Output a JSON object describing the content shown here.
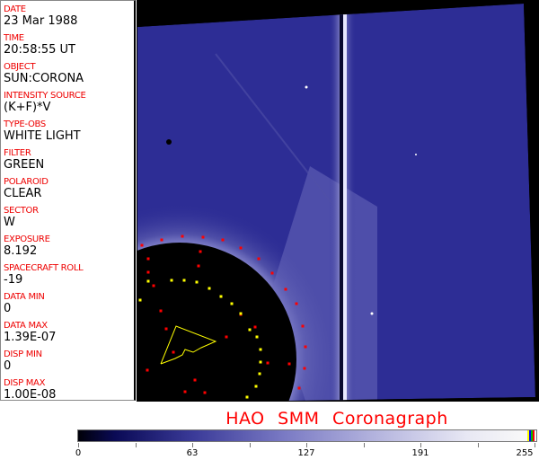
{
  "header": [
    {
      "label": "DATE",
      "value": "23 Mar 1988"
    },
    {
      "label": "TIME",
      "value": "20:58:55 UT"
    },
    {
      "label": "OBJECT",
      "value": "SUN:CORONA"
    },
    {
      "label": "INTENSITY SOURCE",
      "value": "(K+F)*V"
    },
    {
      "label": "TYPE-OBS",
      "value": "WHITE LIGHT"
    },
    {
      "label": "FILTER",
      "value": "GREEN"
    },
    {
      "label": "POLAROID",
      "value": "CLEAR"
    },
    {
      "label": "SECTOR",
      "value": "W"
    },
    {
      "label": "EXPOSURE",
      "value": "8.192"
    },
    {
      "label": "SPACECRAFT ROLL",
      "value": "-19"
    },
    {
      "label": "DATA MIN",
      "value": "0"
    },
    {
      "label": "DATA MAX",
      "value": "1.39E-07"
    },
    {
      "label": "DISP MIN",
      "value": "0"
    },
    {
      "label": "DISP MAX",
      "value": "1.00E-08"
    }
  ],
  "title": "HAO  SMM Coronagraph",
  "colorbar": {
    "ticks": [
      "0",
      "63",
      "127",
      "191",
      "255"
    ],
    "end_colors": [
      "#ffff00",
      "#0000ff",
      "#00c000",
      "#ff0000"
    ]
  },
  "colors": {
    "label": "#ff0000",
    "corona": "#2b2b93",
    "overlay_red": "#ff0000",
    "overlay_yellow": "#ffff00"
  }
}
